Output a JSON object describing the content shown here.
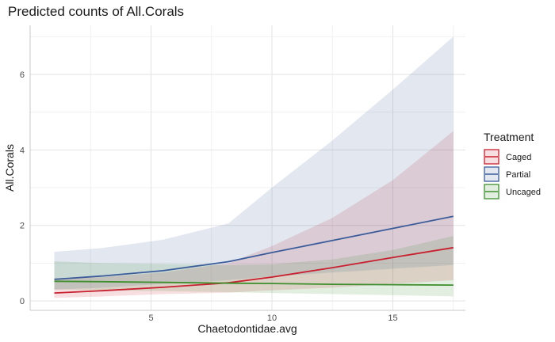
{
  "chart_data": {
    "type": "line",
    "title": "Predicted counts of All.Corals",
    "xlabel": "Chaetodontidae.avg",
    "ylabel": "All.Corals",
    "xlim": [
      0,
      18
    ],
    "ylim": [
      -0.25,
      7.3
    ],
    "x_ticks": [
      5,
      10,
      15
    ],
    "y_ticks": [
      0,
      2,
      4,
      6
    ],
    "grid": true,
    "legend": {
      "title": "Treatment",
      "placement": "right"
    },
    "series": [
      {
        "name": "Caged",
        "color": "#c8202f",
        "x": [
          1,
          3,
          5.5,
          8.2,
          10,
          12.5,
          15,
          17.5
        ],
        "y": [
          0.21,
          0.27,
          0.36,
          0.48,
          0.63,
          0.88,
          1.15,
          1.41
        ],
        "lower": [
          0.08,
          0.12,
          0.18,
          0.22,
          0.28,
          0.35,
          0.45,
          0.55
        ],
        "upper": [
          0.6,
          0.63,
          0.75,
          1.0,
          1.45,
          2.2,
          3.2,
          4.5
        ]
      },
      {
        "name": "Partial",
        "color": "#3b5c9a",
        "x": [
          1,
          3,
          5.5,
          8.2,
          10,
          12.5,
          15,
          17.5
        ],
        "y": [
          0.57,
          0.66,
          0.8,
          1.04,
          1.28,
          1.6,
          1.92,
          2.24
        ],
        "lower": [
          0.3,
          0.35,
          0.45,
          0.55,
          0.65,
          0.75,
          0.85,
          0.95
        ],
        "upper": [
          1.3,
          1.4,
          1.62,
          2.05,
          3.0,
          4.25,
          5.6,
          7.0
        ]
      },
      {
        "name": "Uncaged",
        "color": "#3f8f2f",
        "x": [
          1,
          3,
          5.5,
          8.2,
          10,
          12.5,
          15,
          17.5
        ],
        "y": [
          0.52,
          0.51,
          0.49,
          0.47,
          0.46,
          0.44,
          0.43,
          0.42
        ],
        "lower": [
          0.3,
          0.28,
          0.26,
          0.23,
          0.21,
          0.18,
          0.15,
          0.12
        ],
        "upper": [
          1.05,
          1.0,
          0.98,
          0.95,
          0.97,
          1.1,
          1.35,
          1.72
        ]
      }
    ]
  }
}
